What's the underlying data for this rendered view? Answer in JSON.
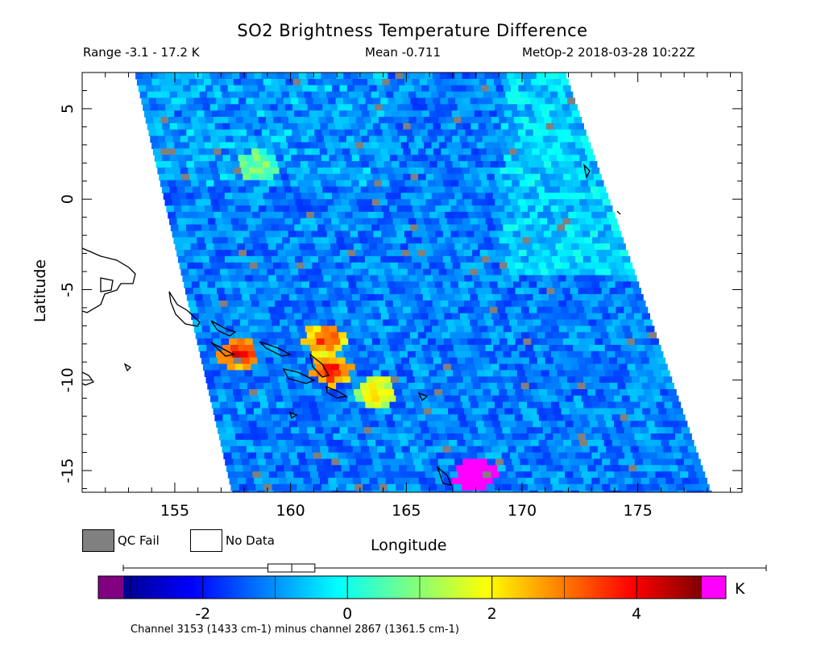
{
  "chart_data": {
    "type": "heatmap",
    "title": "SO2 Brightness Temperature Difference",
    "subtitle_left": "Range -3.1 - 17.2 K",
    "subtitle_center": "Mean -0.711",
    "subtitle_right": "MetOp-2 2018-03-28 10:22Z",
    "xlabel": "Longitude",
    "ylabel": "Latitude",
    "xlim": [
      151,
      179.5
    ],
    "ylim": [
      -16.2,
      7
    ],
    "x_ticks": [
      155,
      160,
      165,
      170,
      175
    ],
    "y_ticks": [
      5,
      0,
      -5,
      -10,
      -15
    ],
    "x_tick_labels": [
      "155",
      "160",
      "165",
      "170",
      "175"
    ],
    "y_tick_labels": [
      "5",
      "0",
      "-5",
      "-10",
      "-15"
    ],
    "colorbar": {
      "min": -3.1,
      "max": 4.9,
      "ticks": [
        -2,
        0,
        2,
        4
      ],
      "tick_labels": [
        "-2",
        "0",
        "2",
        "4"
      ],
      "unit": "K",
      "under_color": "#800080",
      "over_color": "#ff00ff",
      "box_plot": {
        "q1": -1.1,
        "median": -0.77,
        "q3": -0.45,
        "whisker_low": -3.1,
        "whisker_high": 17.2
      }
    },
    "legend": [
      {
        "label": "QC Fail",
        "color": "#808080"
      },
      {
        "label": "No Data",
        "color": "#ffffff"
      }
    ],
    "footnote": "Channel 3153 (1433 cm-1) minus channel 2867 (1361.5 cm-1)",
    "swath": {
      "corners": [
        [
          153.3,
          7
        ],
        [
          171.9,
          7
        ],
        [
          178.2,
          -16.2
        ],
        [
          157.5,
          -16.2
        ]
      ]
    },
    "hotspots": [
      {
        "lon": 161.3,
        "lat": -7.6,
        "value": 3.8
      },
      {
        "lon": 161.6,
        "lat": -9.3,
        "value": 4.2
      },
      {
        "lon": 157.6,
        "lat": -8.4,
        "value": 4.4
      },
      {
        "lon": 163.5,
        "lat": -10.5,
        "value": 2.3
      },
      {
        "lon": 167.8,
        "lat": -15.1,
        "value": 17.2
      },
      {
        "lon": 158.5,
        "lat": 2.0,
        "value": 1.0
      }
    ]
  }
}
